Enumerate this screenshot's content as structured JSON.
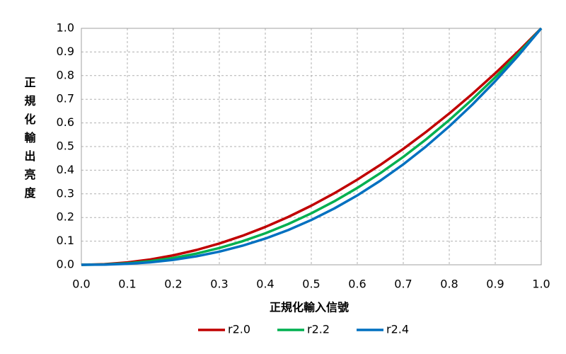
{
  "chart_data": {
    "type": "line",
    "x_label": "正規化輸入信號",
    "y_label": "正規化輸出亮度",
    "x": [
      0,
      0.05,
      0.1,
      0.15,
      0.2,
      0.25,
      0.3,
      0.35,
      0.4,
      0.45,
      0.5,
      0.55,
      0.6,
      0.65,
      0.7,
      0.75,
      0.8,
      0.85,
      0.9,
      0.95,
      1
    ],
    "series": [
      {
        "name": "r2.0",
        "color": "#c00000",
        "values": [
          0,
          0.0025,
          0.01,
          0.0225,
          0.04,
          0.0625,
          0.09,
          0.1225,
          0.16,
          0.2025,
          0.25,
          0.3025,
          0.36,
          0.4225,
          0.49,
          0.5625,
          0.64,
          0.7225,
          0.81,
          0.9025,
          1
        ]
      },
      {
        "name": "r2.2",
        "color": "#00b050",
        "values": [
          0,
          0.0014,
          0.0063,
          0.0154,
          0.029,
          0.0474,
          0.0708,
          0.0993,
          0.1332,
          0.1726,
          0.2176,
          0.2684,
          0.325,
          0.3876,
          0.4562,
          0.5311,
          0.6121,
          0.6994,
          0.7931,
          0.8933,
          1
        ]
      },
      {
        "name": "r2.4",
        "color": "#0070c0",
        "values": [
          0,
          0.0008,
          0.004,
          0.0105,
          0.021,
          0.0359,
          0.0556,
          0.0805,
          0.1109,
          0.1471,
          0.1895,
          0.2382,
          0.2935,
          0.3556,
          0.4248,
          0.5013,
          0.5854,
          0.6771,
          0.7766,
          0.8842,
          1
        ]
      }
    ],
    "xlim": [
      0,
      1
    ],
    "ylim": [
      0,
      1
    ],
    "xticks": [
      {
        "value": 0,
        "label": "0.0"
      },
      0.1,
      0.2,
      0.3,
      0.4,
      0.5,
      0.6,
      0.7,
      0.8,
      0.9,
      {
        "value": 1,
        "label": "1.0"
      }
    ],
    "yticks": [
      {
        "value": 0,
        "label": "0.0"
      },
      0.1,
      0.2,
      0.3,
      0.4,
      0.5,
      0.6,
      0.7,
      0.8,
      0.9,
      {
        "value": 1,
        "label": "1.0"
      }
    ],
    "grid": true,
    "legend": "bottom"
  }
}
